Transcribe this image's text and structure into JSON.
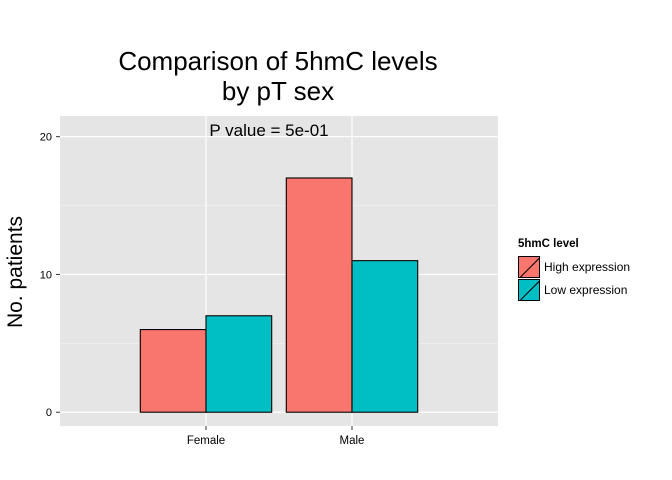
{
  "chart_data": {
    "type": "bar",
    "title_line1": "Comparison of 5hmC levels",
    "title_line2": "by pT sex",
    "annotation": "P value = 5e-01",
    "xlabel": "",
    "ylabel": "No. patients",
    "categories": [
      "Female",
      "Male"
    ],
    "series": [
      {
        "name": "High expression",
        "values": [
          6,
          17
        ],
        "color": "#F8766D"
      },
      {
        "name": "Low expression",
        "values": [
          7,
          11
        ],
        "color": "#00BFC4"
      }
    ],
    "ylim": [
      -1,
      21.5
    ],
    "yticks": [
      0,
      10,
      20
    ],
    "ytick_labels": [
      "0",
      "10",
      "20"
    ],
    "legend_title": "5hmC level",
    "legend_position": "right",
    "grid": true,
    "panel_background": "#E5E5E5",
    "gridline_color": "#FFFFFF"
  }
}
